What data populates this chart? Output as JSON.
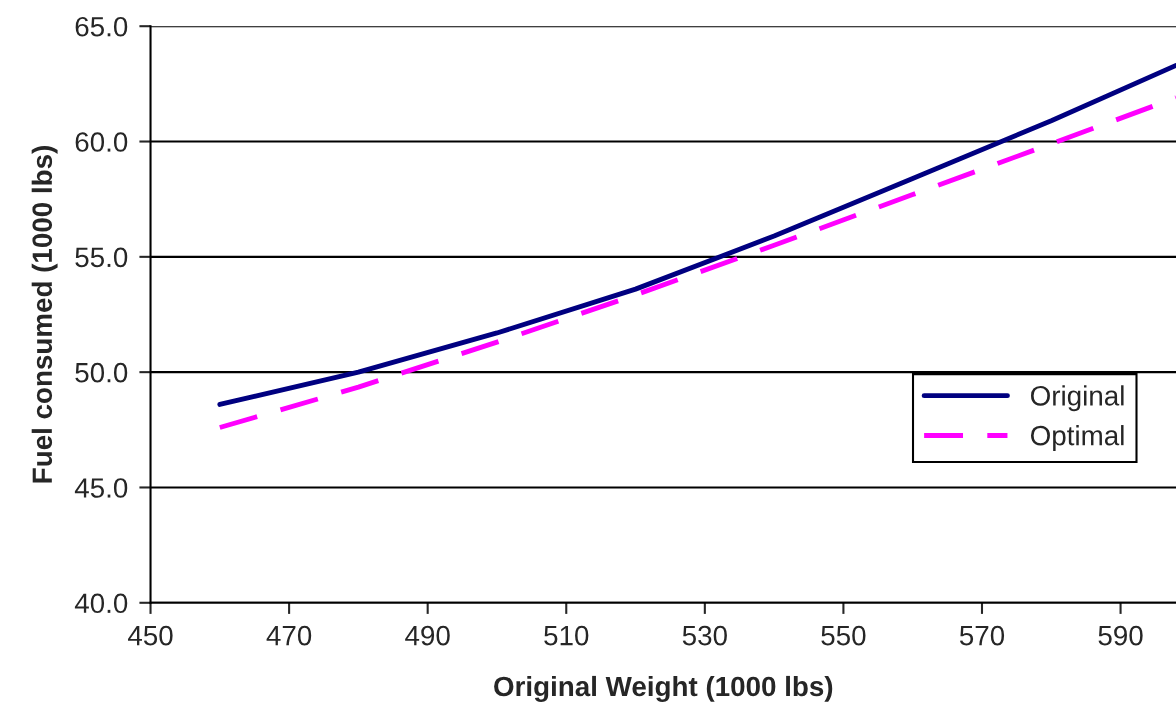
{
  "chart_data": {
    "type": "line",
    "xlabel": "Original Weight (1000 lbs)",
    "ylabel": "Fuel consumed (1000 lbs)",
    "x": [
      460,
      480,
      500,
      520,
      540,
      560,
      580,
      598
    ],
    "series": [
      {
        "name": "Original",
        "color": "#000080",
        "line_style": "solid",
        "values": [
          48.6,
          50.0,
          51.7,
          53.6,
          55.9,
          58.4,
          60.9,
          63.3
        ]
      },
      {
        "name": "Optimal",
        "color": "#ff00ff",
        "line_style": "dashed",
        "values": [
          47.6,
          49.35,
          51.3,
          53.35,
          55.5,
          57.7,
          59.9,
          61.9
        ]
      }
    ],
    "xlim": [
      450,
      598
    ],
    "xticks": [
      450,
      470,
      490,
      510,
      530,
      550,
      570,
      590
    ],
    "ylim": [
      40,
      65
    ],
    "yticks": [
      {
        "value": 40,
        "label": "40.0"
      },
      {
        "value": 45,
        "label": "45.0"
      },
      {
        "value": 50,
        "label": "50.0"
      },
      {
        "value": 55,
        "label": "55.0"
      },
      {
        "value": 60,
        "label": "60.0"
      },
      {
        "value": 65,
        "label": "65.0"
      }
    ],
    "grid": "y",
    "legend": "right",
    "marker": "none"
  }
}
